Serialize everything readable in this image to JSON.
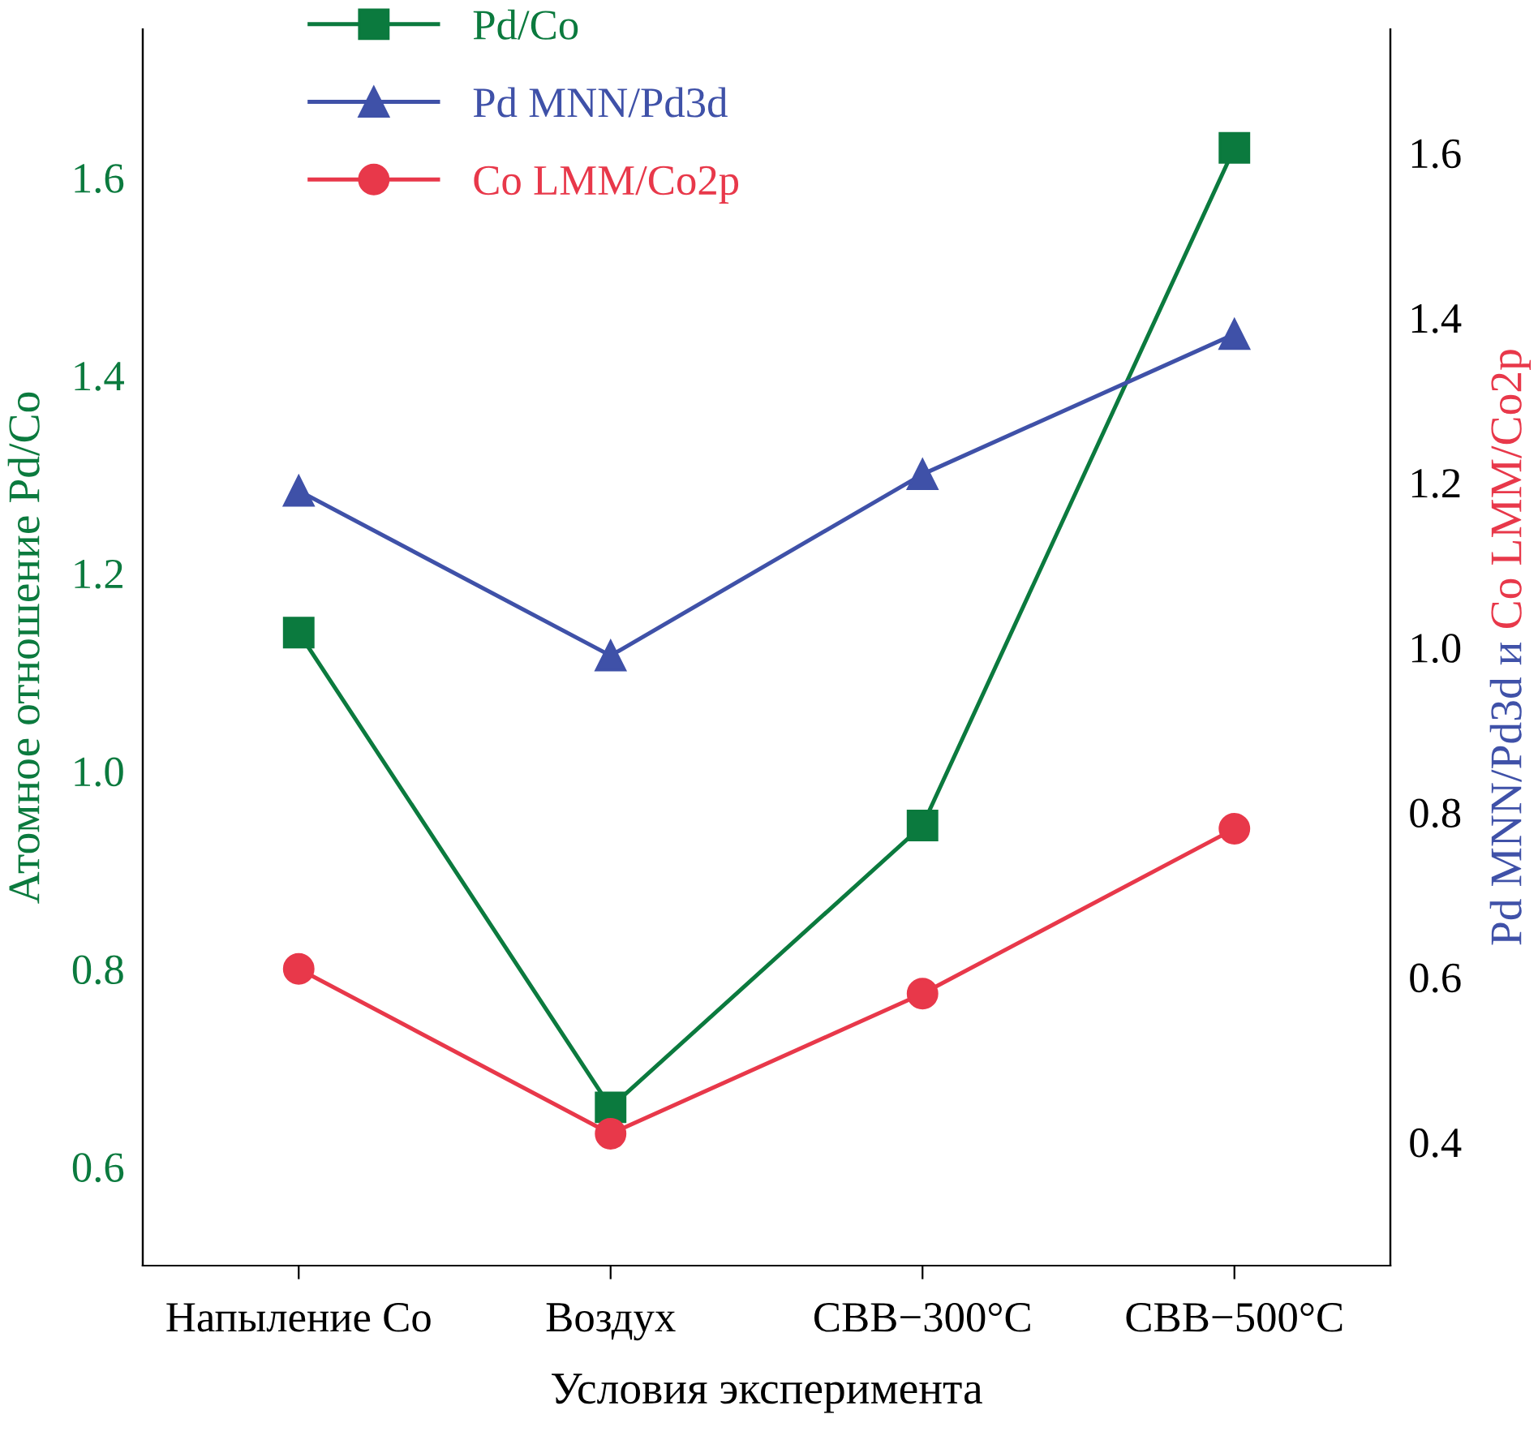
{
  "chart_data": {
    "type": "line",
    "xlabel": "Условия эксперимента",
    "ylabel": "Атомное отношение Pd/Co",
    "y2label": [
      "Pd MNN/Pd3d и ",
      "Co LMM/Co2p"
    ],
    "categories": [
      "Напыление Co",
      "Воздух",
      "СВВ−300°C",
      "СВВ−500°C"
    ],
    "series": [
      {
        "name": "Pd/Co",
        "color": "#0b7a3e",
        "marker": "square",
        "values": [
          1.14,
          0.66,
          0.945,
          1.63
        ]
      },
      {
        "name": "Pd MNN/Pd3d",
        "color": "#3f51a8",
        "marker": "triangle",
        "axis": "y2",
        "values": [
          1.19,
          0.99,
          1.21,
          1.38
        ]
      },
      {
        "name": "Co LMM/Co2p",
        "color": "#e8384a",
        "marker": "circle",
        "axis": "y2",
        "values": [
          0.61,
          0.41,
          0.58,
          0.78
        ]
      }
    ],
    "ylim": [
      0.5,
      1.75
    ],
    "yticks": [
      0.6,
      0.8,
      {
        "value": 1,
        "label": "1.0"
      },
      1.2,
      1.4,
      1.6
    ],
    "y2lim": [
      0.25,
      1.75
    ],
    "y2ticks": [
      0.4,
      0.6,
      0.8,
      {
        "value": 1,
        "label": "1.0"
      },
      1.2,
      1.4,
      1.6
    ],
    "legend": "top left",
    "grid": false,
    "line_style": "solid"
  }
}
